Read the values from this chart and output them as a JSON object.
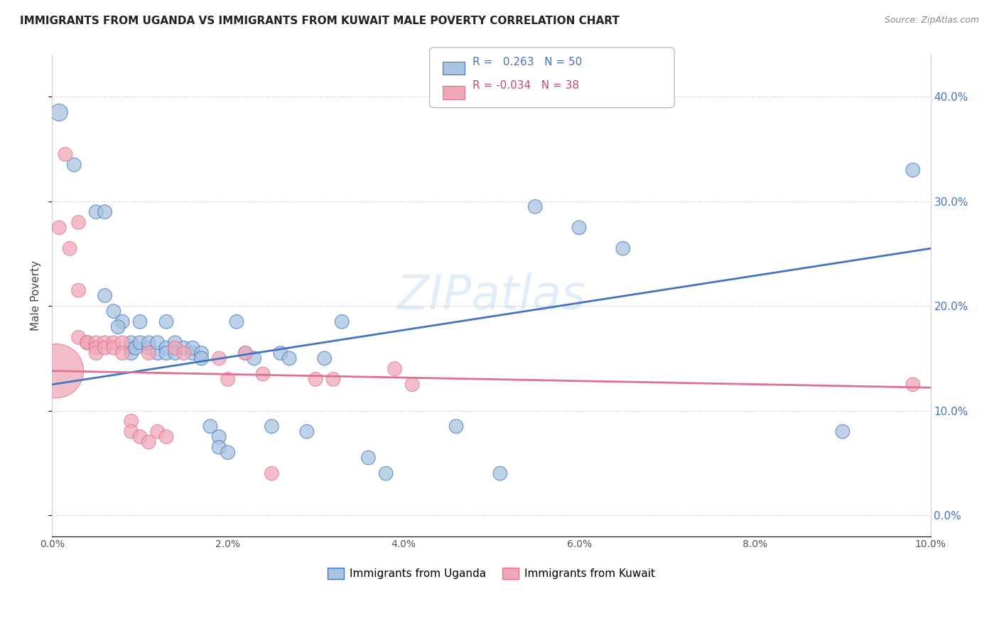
{
  "title": "IMMIGRANTS FROM UGANDA VS IMMIGRANTS FROM KUWAIT MALE POVERTY CORRELATION CHART",
  "source": "Source: ZipAtlas.com",
  "ylabel": "Male Poverty",
  "legend_label1": "Immigrants from Uganda",
  "legend_label2": "Immigrants from Kuwait",
  "r1": "0.263",
  "n1": "50",
  "r2": "-0.034",
  "n2": "38",
  "color_uganda": "#a8c4e0",
  "color_kuwait": "#f0a8b8",
  "color_uganda_line": "#4472c4",
  "color_kuwait_line": "#e07090",
  "watermark": "ZIPatlas",
  "xlim": [
    0,
    0.1
  ],
  "ylim": [
    -0.02,
    0.44
  ],
  "uganda_line": [
    [
      0.0,
      0.125
    ],
    [
      0.1,
      0.255
    ]
  ],
  "kuwait_line": [
    [
      0.0,
      0.138
    ],
    [
      0.1,
      0.122
    ]
  ],
  "uganda_points": [
    [
      0.0008,
      0.385
    ],
    [
      0.0025,
      0.335
    ],
    [
      0.005,
      0.29
    ],
    [
      0.006,
      0.29
    ],
    [
      0.006,
      0.21
    ],
    [
      0.007,
      0.195
    ],
    [
      0.008,
      0.185
    ],
    [
      0.0075,
      0.18
    ],
    [
      0.009,
      0.16
    ],
    [
      0.009,
      0.165
    ],
    [
      0.009,
      0.155
    ],
    [
      0.0095,
      0.16
    ],
    [
      0.01,
      0.185
    ],
    [
      0.01,
      0.165
    ],
    [
      0.011,
      0.16
    ],
    [
      0.011,
      0.165
    ],
    [
      0.012,
      0.155
    ],
    [
      0.012,
      0.165
    ],
    [
      0.013,
      0.185
    ],
    [
      0.013,
      0.16
    ],
    [
      0.013,
      0.155
    ],
    [
      0.014,
      0.165
    ],
    [
      0.014,
      0.155
    ],
    [
      0.015,
      0.16
    ],
    [
      0.016,
      0.155
    ],
    [
      0.016,
      0.16
    ],
    [
      0.017,
      0.155
    ],
    [
      0.017,
      0.15
    ],
    [
      0.018,
      0.085
    ],
    [
      0.019,
      0.075
    ],
    [
      0.019,
      0.065
    ],
    [
      0.02,
      0.06
    ],
    [
      0.021,
      0.185
    ],
    [
      0.022,
      0.155
    ],
    [
      0.023,
      0.15
    ],
    [
      0.025,
      0.085
    ],
    [
      0.026,
      0.155
    ],
    [
      0.027,
      0.15
    ],
    [
      0.029,
      0.08
    ],
    [
      0.031,
      0.15
    ],
    [
      0.033,
      0.185
    ],
    [
      0.036,
      0.055
    ],
    [
      0.038,
      0.04
    ],
    [
      0.046,
      0.085
    ],
    [
      0.051,
      0.04
    ],
    [
      0.055,
      0.295
    ],
    [
      0.06,
      0.275
    ],
    [
      0.065,
      0.255
    ],
    [
      0.09,
      0.08
    ],
    [
      0.098,
      0.33
    ]
  ],
  "uganda_sizes": [
    300,
    200,
    200,
    200,
    200,
    200,
    200,
    200,
    200,
    200,
    200,
    200,
    200,
    200,
    200,
    200,
    200,
    200,
    200,
    200,
    200,
    200,
    200,
    200,
    200,
    200,
    200,
    200,
    200,
    200,
    200,
    200,
    200,
    200,
    200,
    200,
    200,
    200,
    200,
    200,
    200,
    200,
    200,
    200,
    200,
    200,
    200,
    200,
    200,
    200
  ],
  "kuwait_points": [
    [
      0.0005,
      0.138
    ],
    [
      0.0008,
      0.275
    ],
    [
      0.0015,
      0.345
    ],
    [
      0.002,
      0.255
    ],
    [
      0.003,
      0.28
    ],
    [
      0.003,
      0.215
    ],
    [
      0.003,
      0.17
    ],
    [
      0.004,
      0.165
    ],
    [
      0.004,
      0.165
    ],
    [
      0.004,
      0.165
    ],
    [
      0.005,
      0.165
    ],
    [
      0.005,
      0.16
    ],
    [
      0.005,
      0.155
    ],
    [
      0.006,
      0.165
    ],
    [
      0.006,
      0.16
    ],
    [
      0.007,
      0.165
    ],
    [
      0.007,
      0.16
    ],
    [
      0.008,
      0.165
    ],
    [
      0.008,
      0.155
    ],
    [
      0.009,
      0.09
    ],
    [
      0.009,
      0.08
    ],
    [
      0.01,
      0.075
    ],
    [
      0.011,
      0.155
    ],
    [
      0.011,
      0.07
    ],
    [
      0.012,
      0.08
    ],
    [
      0.013,
      0.075
    ],
    [
      0.014,
      0.16
    ],
    [
      0.015,
      0.155
    ],
    [
      0.019,
      0.15
    ],
    [
      0.02,
      0.13
    ],
    [
      0.022,
      0.155
    ],
    [
      0.024,
      0.135
    ],
    [
      0.025,
      0.04
    ],
    [
      0.03,
      0.13
    ],
    [
      0.032,
      0.13
    ],
    [
      0.039,
      0.14
    ],
    [
      0.041,
      0.125
    ],
    [
      0.098,
      0.125
    ]
  ],
  "kuwait_sizes": [
    3000,
    200,
    200,
    200,
    200,
    200,
    200,
    200,
    200,
    200,
    200,
    200,
    200,
    200,
    200,
    200,
    200,
    200,
    200,
    200,
    200,
    200,
    200,
    200,
    200,
    200,
    200,
    200,
    200,
    200,
    200,
    200,
    200,
    200,
    200,
    200,
    200,
    200
  ]
}
